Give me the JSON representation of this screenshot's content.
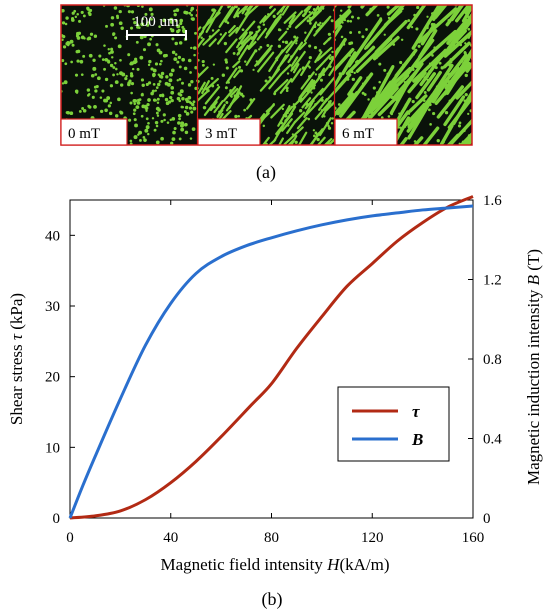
{
  "panel_a": {
    "caption": "(a)",
    "scale_bar_label": "100 um",
    "panels": [
      {
        "label": "0 mT",
        "chain_density": 0.0
      },
      {
        "label": "3 mT",
        "chain_density": 0.5
      },
      {
        "label": "6 mT",
        "chain_density": 1.0
      }
    ],
    "colors": {
      "particles": "#7CD13A",
      "background": "#0a120a",
      "frame": "#d11f1f"
    }
  },
  "panel_b": {
    "caption": "(b)"
  },
  "chart_data": {
    "type": "line",
    "xlabel_pre": "Magnetic field intensity ",
    "xlabel_var": "H",
    "xlabel_post": "(kA/m)",
    "ylabel_left_pre": "Shear stress ",
    "ylabel_left_var": "τ",
    "ylabel_left_post": " (kPa)",
    "ylabel_right_pre": "Magnetic induction intensity ",
    "ylabel_right_var": "B",
    "ylabel_right_post": " (T)",
    "xlim": [
      0,
      160
    ],
    "ylim_left": [
      0,
      45
    ],
    "ylim_right": [
      0,
      1.6
    ],
    "xticks": [
      "0",
      "40",
      "80",
      "120",
      "160"
    ],
    "yticks_left": [
      "0",
      "10",
      "20",
      "30",
      "40"
    ],
    "yticks_right": [
      "0",
      "0.4",
      "0.8",
      "1.2",
      "1.6"
    ],
    "legend_position": "lower-right",
    "series": [
      {
        "name": "τ",
        "axis": "left",
        "color": "#b22a14",
        "x": [
          0,
          10,
          20,
          30,
          40,
          50,
          60,
          72,
          80,
          90,
          100,
          110,
          120,
          130,
          140,
          150,
          160
        ],
        "y": [
          0,
          0.3,
          1.0,
          2.6,
          5.0,
          8.0,
          11.5,
          16.0,
          19.0,
          24.0,
          28.5,
          32.8,
          36.0,
          39.2,
          41.8,
          44.0,
          45.5
        ]
      },
      {
        "name": "B",
        "axis": "right",
        "color": "#2a6fce",
        "x": [
          0,
          5,
          10,
          20,
          30,
          40,
          50,
          60,
          70,
          80,
          90,
          100,
          110,
          120,
          130,
          140,
          150,
          160
        ],
        "y": [
          0,
          0.16,
          0.31,
          0.6,
          0.87,
          1.08,
          1.23,
          1.315,
          1.37,
          1.41,
          1.445,
          1.475,
          1.5,
          1.52,
          1.535,
          1.55,
          1.56,
          1.57
        ]
      }
    ]
  }
}
